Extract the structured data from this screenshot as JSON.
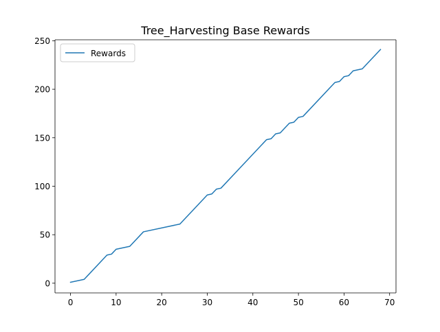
{
  "chart_data": {
    "type": "line",
    "title": "Tree_Harvesting Base Rewards",
    "xlabel": "",
    "ylabel": "",
    "xlim": [
      -3.4,
      71.4
    ],
    "ylim": [
      -10.0,
      251.0
    ],
    "xticks": [
      0,
      10,
      20,
      30,
      40,
      50,
      60,
      70
    ],
    "yticks": [
      0,
      50,
      100,
      150,
      200,
      250
    ],
    "grid": false,
    "legend": "top-left",
    "series": [
      {
        "name": "Rewards",
        "color": "#1f77b4",
        "x": [
          0,
          3,
          8,
          9,
          10,
          13,
          16,
          24,
          30,
          31,
          32,
          33,
          43,
          44,
          45,
          46,
          48,
          49,
          50,
          51,
          58,
          59,
          60,
          61,
          62,
          64,
          68
        ],
        "y": [
          1,
          4,
          29,
          30,
          35,
          38,
          53,
          61,
          91,
          92,
          97,
          98,
          148,
          149,
          154,
          155,
          165,
          166,
          171,
          172,
          207,
          208,
          213,
          214,
          219,
          221,
          241
        ]
      }
    ]
  }
}
